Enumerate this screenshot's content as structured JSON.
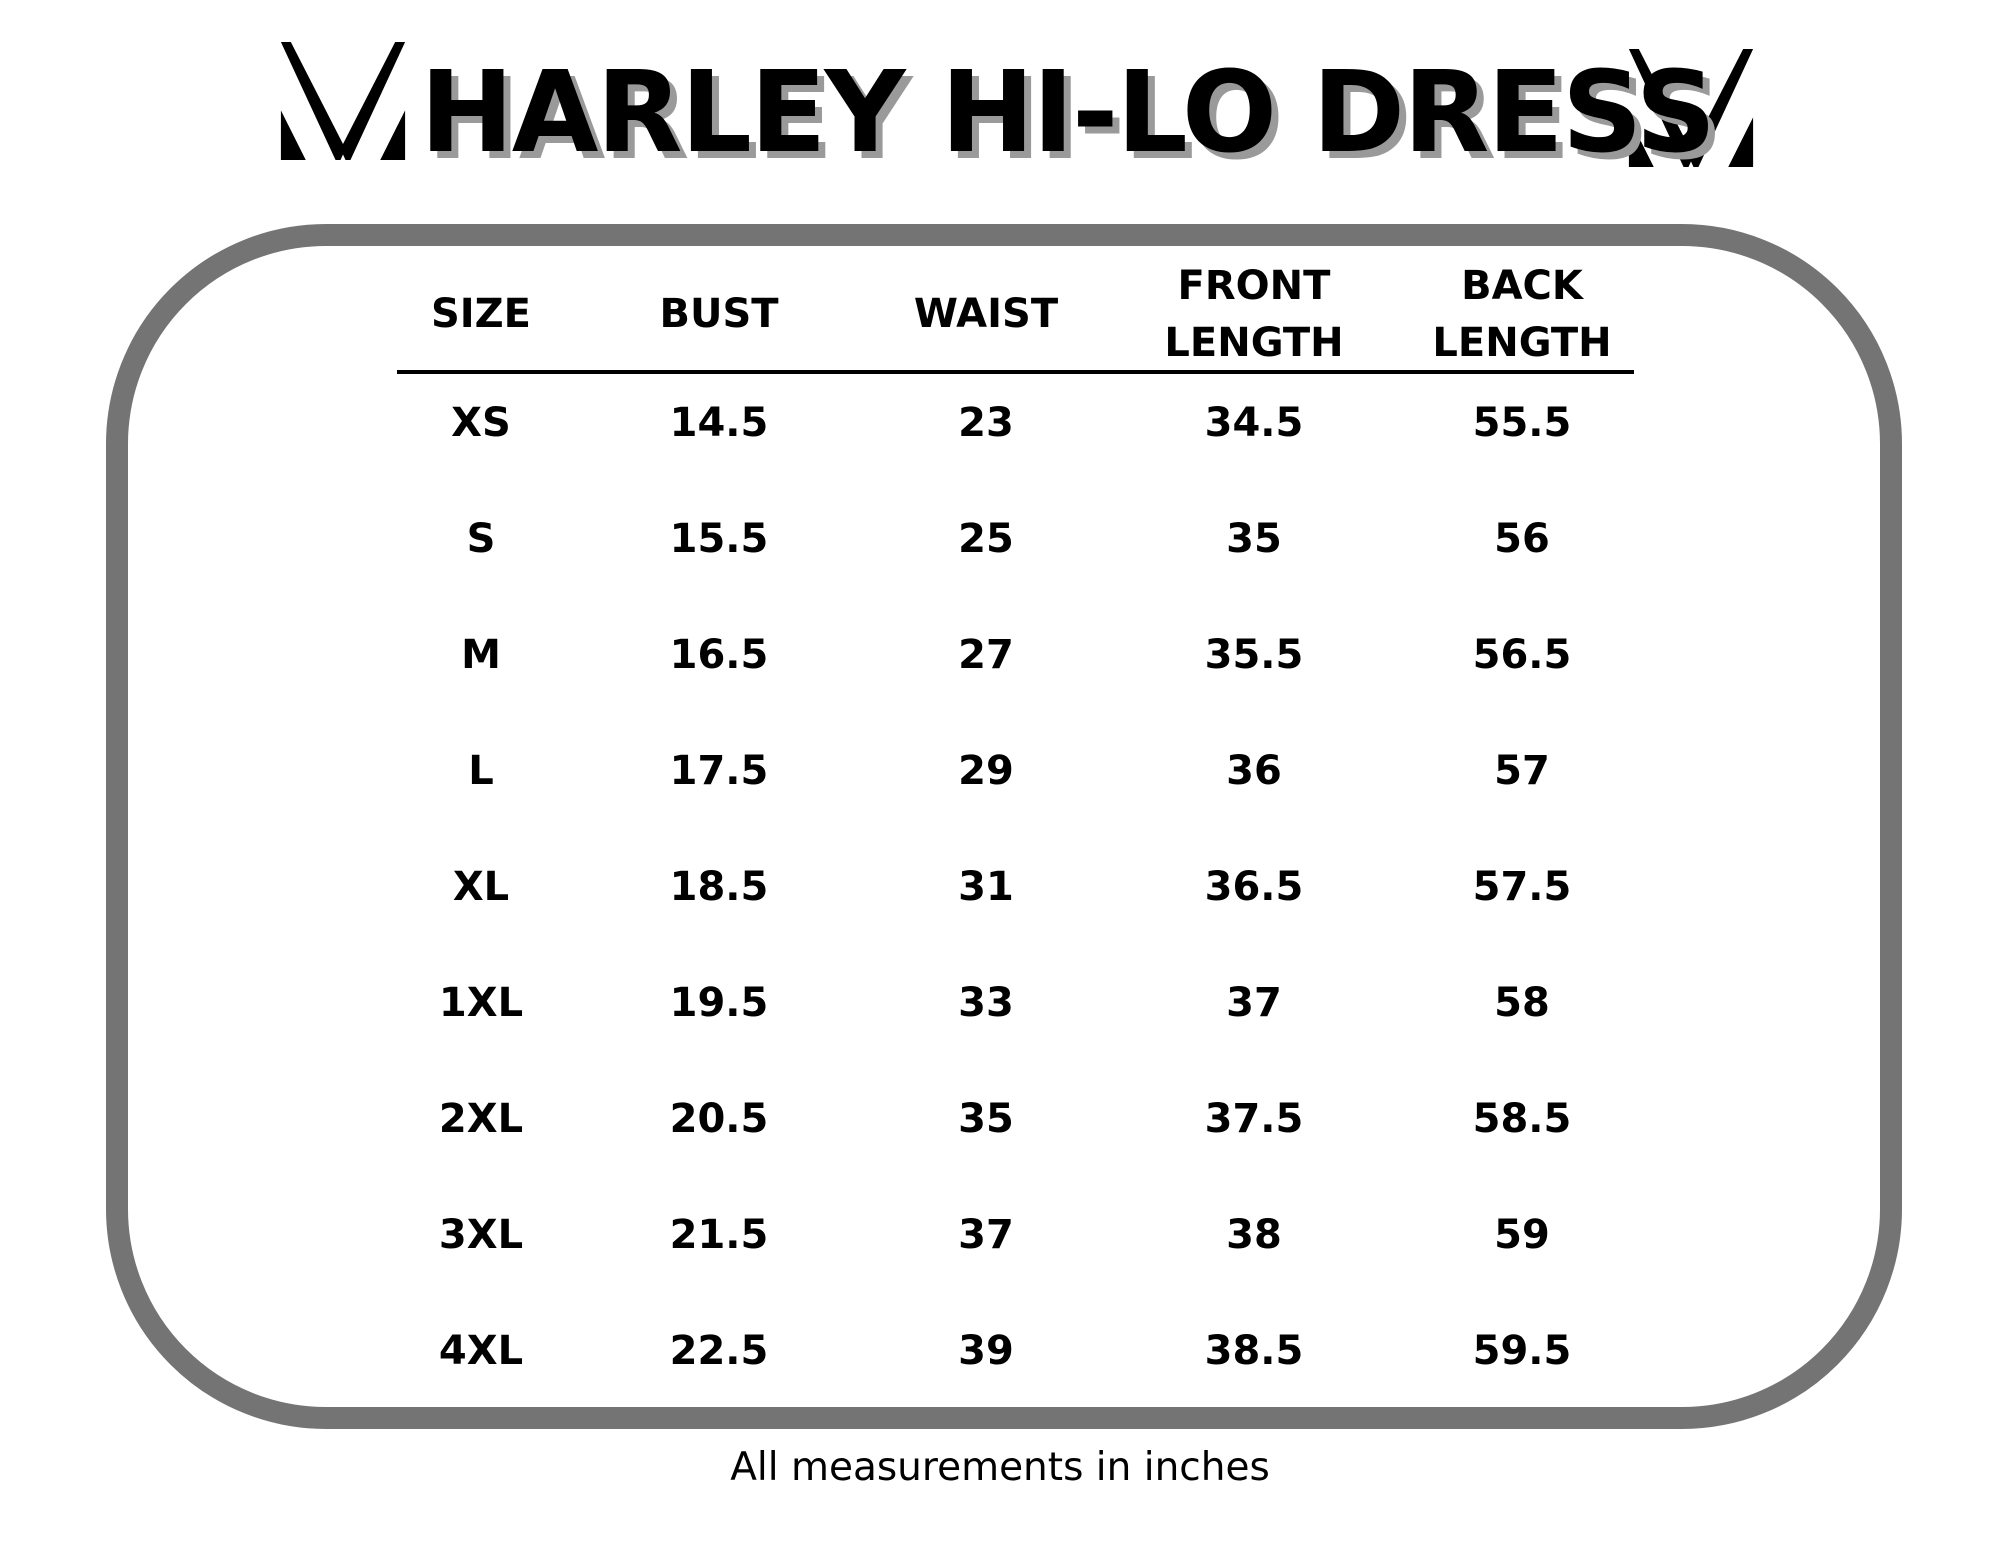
{
  "title": "HARLEY HI-LO DRESS",
  "logo": {
    "icon": "v-monogram-logo",
    "color": "#000000"
  },
  "border_color": "#747474",
  "table": {
    "headers": [
      [
        "SIZE"
      ],
      [
        "BUST"
      ],
      [
        "WAIST"
      ],
      [
        "FRONT",
        "LENGTH"
      ],
      [
        "BACK",
        "LENGTH"
      ]
    ],
    "rows": [
      [
        "XS",
        "14.5",
        "23",
        "34.5",
        "55.5"
      ],
      [
        "S",
        "15.5",
        "25",
        "35",
        "56"
      ],
      [
        "M",
        "16.5",
        "27",
        "35.5",
        "56.5"
      ],
      [
        "L",
        "17.5",
        "29",
        "36",
        "57"
      ],
      [
        "XL",
        "18.5",
        "31",
        "36.5",
        "57.5"
      ],
      [
        "1XL",
        "19.5",
        "33",
        "37",
        "58"
      ],
      [
        "2XL",
        "20.5",
        "35",
        "37.5",
        "58.5"
      ],
      [
        "3XL",
        "21.5",
        "37",
        "38",
        "59"
      ],
      [
        "4XL",
        "22.5",
        "39",
        "38.5",
        "59.5"
      ]
    ]
  },
  "footer": "All measurements in inches"
}
